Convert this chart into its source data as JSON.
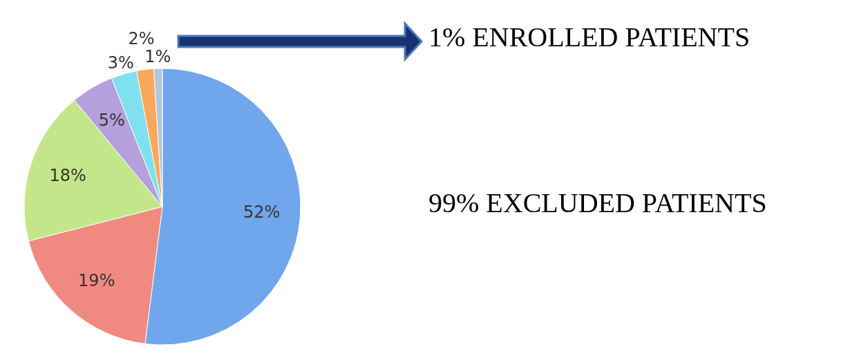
{
  "chart_data": {
    "type": "pie",
    "categories": [
      null,
      null,
      null,
      null,
      null,
      null,
      null
    ],
    "values": [
      52,
      19,
      18,
      5,
      3,
      2,
      1
    ],
    "colors": [
      "#6fa6ec",
      "#f08a80",
      "#c4e68a",
      "#b59fdd",
      "#7fe0f0",
      "#f8a85a",
      "#b4c6dc"
    ],
    "value_labels": [
      "52%",
      "19%",
      "18%",
      "5%",
      "3%",
      "2%",
      "1%"
    ],
    "annotations": [
      "1% ENROLLED PATIENTS",
      "99% EXCLUDED PATIENTS"
    ]
  }
}
